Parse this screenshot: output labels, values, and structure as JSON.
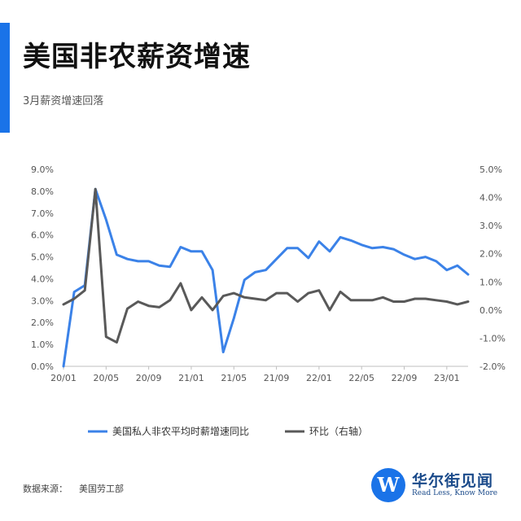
{
  "header": {
    "title": "美国非农薪资增速",
    "subtitle": "3月薪资增速回落"
  },
  "footer": {
    "source_label": "数据来源：",
    "source_value": "美国劳工部",
    "brand_name": "华尔街见闻",
    "brand_slogan": "Read Less, Know More",
    "brand_logo_icon": "wallstreetcn-logo-icon",
    "brand_logo_letter": "W"
  },
  "chart_data": {
    "type": "line",
    "title": "",
    "xlabel": "",
    "ylabel": "",
    "grid": false,
    "legend_position": "bottom",
    "x_tick_labels": [
      "20/01",
      "20/05",
      "20/09",
      "21/01",
      "21/05",
      "21/09",
      "22/01",
      "22/05",
      "22/09",
      "23/01"
    ],
    "y_left_tick_labels": [
      "0.0%",
      "1.0%",
      "2.0%",
      "3.0%",
      "4.0%",
      "5.0%",
      "6.0%",
      "7.0%",
      "8.0%",
      "9.0%"
    ],
    "y_right_tick_labels": [
      "-2.0%",
      "-1.0%",
      "0.0%",
      "1.0%",
      "2.0%",
      "3.0%",
      "4.0%",
      "5.0%"
    ],
    "ylim_left": [
      0,
      9
    ],
    "ylim_right": [
      -2,
      5
    ],
    "x": [
      "2020-01",
      "2020-02",
      "2020-03",
      "2020-04",
      "2020-05",
      "2020-06",
      "2020-07",
      "2020-08",
      "2020-09",
      "2020-10",
      "2020-11",
      "2020-12",
      "2021-01",
      "2021-02",
      "2021-03",
      "2021-04",
      "2021-05",
      "2021-06",
      "2021-07",
      "2021-08",
      "2021-09",
      "2021-10",
      "2021-11",
      "2021-12",
      "2022-01",
      "2022-02",
      "2022-03",
      "2022-04",
      "2022-05",
      "2022-06",
      "2022-07",
      "2022-08",
      "2022-09",
      "2022-10",
      "2022-11",
      "2022-12",
      "2023-01",
      "2023-02",
      "2023-03"
    ],
    "series": [
      {
        "name": "美国私人非农平均时薪增速同比",
        "axis": "left",
        "color": "#3b82e8",
        "values": [
          0.0,
          3.4,
          3.7,
          8.1,
          6.7,
          5.1,
          4.9,
          4.8,
          4.8,
          4.6,
          4.55,
          5.45,
          5.25,
          5.25,
          4.4,
          0.65,
          2.2,
          3.95,
          4.3,
          4.4,
          4.9,
          5.4,
          5.4,
          4.95,
          5.7,
          5.25,
          5.9,
          5.75,
          5.55,
          5.4,
          5.45,
          5.35,
          5.1,
          4.9,
          5.0,
          4.8,
          4.4,
          4.6,
          4.2
        ]
      },
      {
        "name": "环比（右轴）",
        "axis": "right",
        "color": "#595959",
        "values": [
          0.2,
          0.4,
          0.7,
          4.3,
          -0.95,
          -1.15,
          0.05,
          0.3,
          0.15,
          0.1,
          0.35,
          0.95,
          0.0,
          0.45,
          0.0,
          0.5,
          0.6,
          0.45,
          0.4,
          0.35,
          0.6,
          0.6,
          0.3,
          0.6,
          0.7,
          0.0,
          0.65,
          0.35,
          0.35,
          0.35,
          0.45,
          0.3,
          0.3,
          0.4,
          0.4,
          0.35,
          0.3,
          0.2,
          0.3
        ]
      }
    ]
  }
}
